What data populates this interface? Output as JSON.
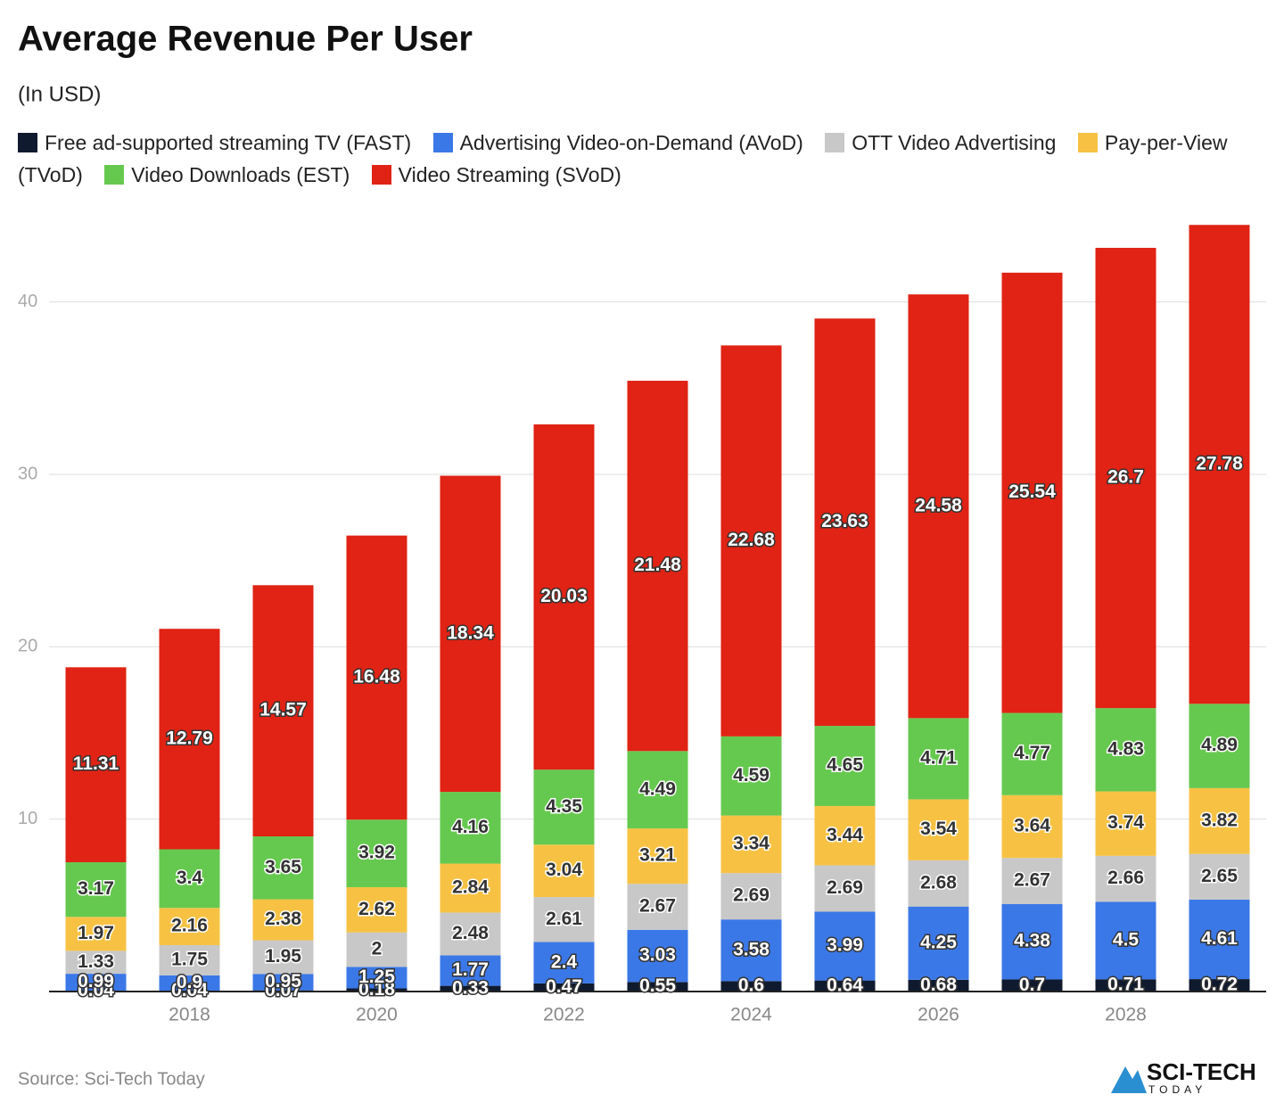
{
  "chart_data": {
    "type": "stacked_bar",
    "title": "Average Revenue Per User",
    "subtitle": "(In USD)",
    "categories": [
      null,
      "2018",
      null,
      "2020",
      null,
      "2022",
      null,
      "2024",
      null,
      "2026",
      null,
      "2028",
      null
    ],
    "series": [
      {
        "name": "Free ad-supported streaming TV (FAST)",
        "color": "#0f1a2e",
        "values": [
          0.04,
          0.04,
          0.07,
          0.18,
          0.33,
          0.47,
          0.55,
          0.6,
          0.64,
          0.68,
          0.7,
          0.71,
          0.72
        ]
      },
      {
        "name": "Advertising Video-on-Demand (AVoD)",
        "color": "#3b78e7",
        "values": [
          0.99,
          0.9,
          0.95,
          1.25,
          1.77,
          2.4,
          3.03,
          3.58,
          3.99,
          4.25,
          4.38,
          4.5,
          4.61
        ]
      },
      {
        "name": "OTT Video Advertising",
        "color": "#c8c8c8",
        "values": [
          1.33,
          1.75,
          1.95,
          2,
          2.48,
          2.61,
          2.67,
          2.69,
          2.69,
          2.68,
          2.67,
          2.66,
          2.65
        ]
      },
      {
        "name": "Pay-per-View (TVoD)",
        "color": "#f7c244",
        "values": [
          1.97,
          2.16,
          2.38,
          2.62,
          2.84,
          3.04,
          3.21,
          3.34,
          3.44,
          3.54,
          3.64,
          3.74,
          3.82
        ]
      },
      {
        "name": "Video Downloads (EST)",
        "color": "#66c94f",
        "values": [
          3.17,
          3.4,
          3.65,
          3.92,
          4.16,
          4.35,
          4.49,
          4.59,
          4.65,
          4.71,
          4.77,
          4.83,
          4.89
        ]
      },
      {
        "name": "Video Streaming (SVoD)",
        "color": "#e02314",
        "values": [
          11.31,
          12.79,
          14.57,
          16.48,
          18.34,
          20.03,
          21.48,
          22.68,
          23.63,
          24.58,
          25.54,
          26.7,
          27.78
        ]
      }
    ],
    "ylim": [
      0,
      45
    ],
    "yticks": [
      10,
      20,
      30,
      40
    ],
    "grid": true
  },
  "footer": {
    "source": "Source: Sci-Tech Today",
    "logo_top": "SCI-TECH",
    "logo_bottom": "TODAY"
  }
}
